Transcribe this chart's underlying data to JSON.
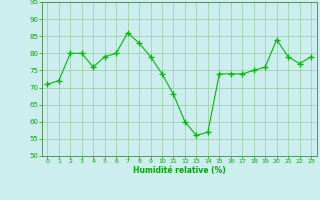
{
  "x": [
    0,
    1,
    2,
    3,
    4,
    5,
    6,
    7,
    8,
    9,
    10,
    11,
    12,
    13,
    14,
    15,
    16,
    17,
    18,
    19,
    20,
    21,
    22,
    23
  ],
  "y": [
    71,
    72,
    80,
    80,
    76,
    79,
    80,
    86,
    83,
    79,
    74,
    68,
    60,
    56,
    57,
    74,
    74,
    74,
    75,
    76,
    84,
    79,
    77,
    79
  ],
  "ylim": [
    50,
    95
  ],
  "yticks": [
    50,
    55,
    60,
    65,
    70,
    75,
    80,
    85,
    90,
    95
  ],
  "xticks": [
    0,
    1,
    2,
    3,
    4,
    5,
    6,
    7,
    8,
    9,
    10,
    11,
    12,
    13,
    14,
    15,
    16,
    17,
    18,
    19,
    20,
    21,
    22,
    23
  ],
  "xlabel": "Humidité relative (%)",
  "line_color": "#00bb00",
  "marker_color": "#00bb00",
  "bg_color": "#cceeee",
  "grid_color": "#99cc99",
  "axis_color": "#448844",
  "tick_color": "#00aa00",
  "xlabel_color": "#00aa00"
}
